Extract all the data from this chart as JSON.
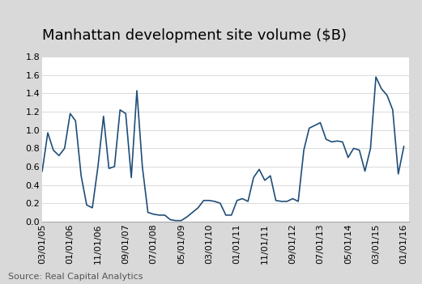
{
  "title": "Manhattan development site volume ($B)",
  "source": "Source: Real Capital Analytics",
  "line_color": "#1f4e79",
  "background_color": "#d9d9d9",
  "plot_background": "#ffffff",
  "ylim": [
    0,
    1.8
  ],
  "yticks": [
    0.0,
    0.2,
    0.4,
    0.6,
    0.8,
    1.0,
    1.2,
    1.4,
    1.6,
    1.8
  ],
  "xtick_labels": [
    "03/01/05",
    "01/01/06",
    "11/01/06",
    "09/01/07",
    "07/01/08",
    "05/01/09",
    "03/01/10",
    "01/01/11",
    "11/01/11",
    "09/01/12",
    "07/01/13",
    "05/01/14",
    "03/01/15",
    "01/01/16"
  ],
  "dates": [
    "2005-03-01",
    "2005-05-01",
    "2005-07-01",
    "2005-09-01",
    "2005-11-01",
    "2006-01-01",
    "2006-03-01",
    "2006-05-01",
    "2006-07-01",
    "2006-09-01",
    "2006-11-01",
    "2007-01-01",
    "2007-03-01",
    "2007-05-01",
    "2007-07-01",
    "2007-09-01",
    "2007-11-01",
    "2008-01-01",
    "2008-03-01",
    "2008-05-01",
    "2008-07-01",
    "2008-09-01",
    "2008-11-01",
    "2009-01-01",
    "2009-03-01",
    "2009-05-01",
    "2009-07-01",
    "2009-09-01",
    "2009-11-01",
    "2010-01-01",
    "2010-03-01",
    "2010-05-01",
    "2010-07-01",
    "2010-09-01",
    "2010-11-01",
    "2011-01-01",
    "2011-03-01",
    "2011-05-01",
    "2011-07-01",
    "2011-09-01",
    "2011-11-01",
    "2012-01-01",
    "2012-03-01",
    "2012-05-01",
    "2012-07-01",
    "2012-09-01",
    "2012-11-01",
    "2013-01-01",
    "2013-03-01",
    "2013-05-01",
    "2013-07-01",
    "2013-09-01",
    "2013-11-01",
    "2014-01-01",
    "2014-03-01",
    "2014-05-01",
    "2014-07-01",
    "2014-09-01",
    "2014-11-01",
    "2015-01-01",
    "2015-03-01",
    "2015-05-01",
    "2015-07-01",
    "2015-09-01",
    "2015-11-01",
    "2016-01-01"
  ],
  "values": [
    0.55,
    0.97,
    0.78,
    0.72,
    0.8,
    1.18,
    1.1,
    0.5,
    0.18,
    0.15,
    0.6,
    1.15,
    0.58,
    0.6,
    1.22,
    1.18,
    0.48,
    1.43,
    0.6,
    0.1,
    0.08,
    0.07,
    0.07,
    0.02,
    0.01,
    0.01,
    0.05,
    0.1,
    0.15,
    0.23,
    0.23,
    0.22,
    0.2,
    0.07,
    0.07,
    0.23,
    0.25,
    0.22,
    0.48,
    0.57,
    0.45,
    0.5,
    0.23,
    0.22,
    0.22,
    0.25,
    0.22,
    0.78,
    1.02,
    1.05,
    1.08,
    0.9,
    0.87,
    0.88,
    0.87,
    0.7,
    0.8,
    0.78,
    0.55,
    0.8,
    1.58,
    1.45,
    1.38,
    1.22,
    0.52,
    0.82
  ],
  "title_fontsize": 13,
  "tick_fontsize": 8,
  "source_fontsize": 8
}
